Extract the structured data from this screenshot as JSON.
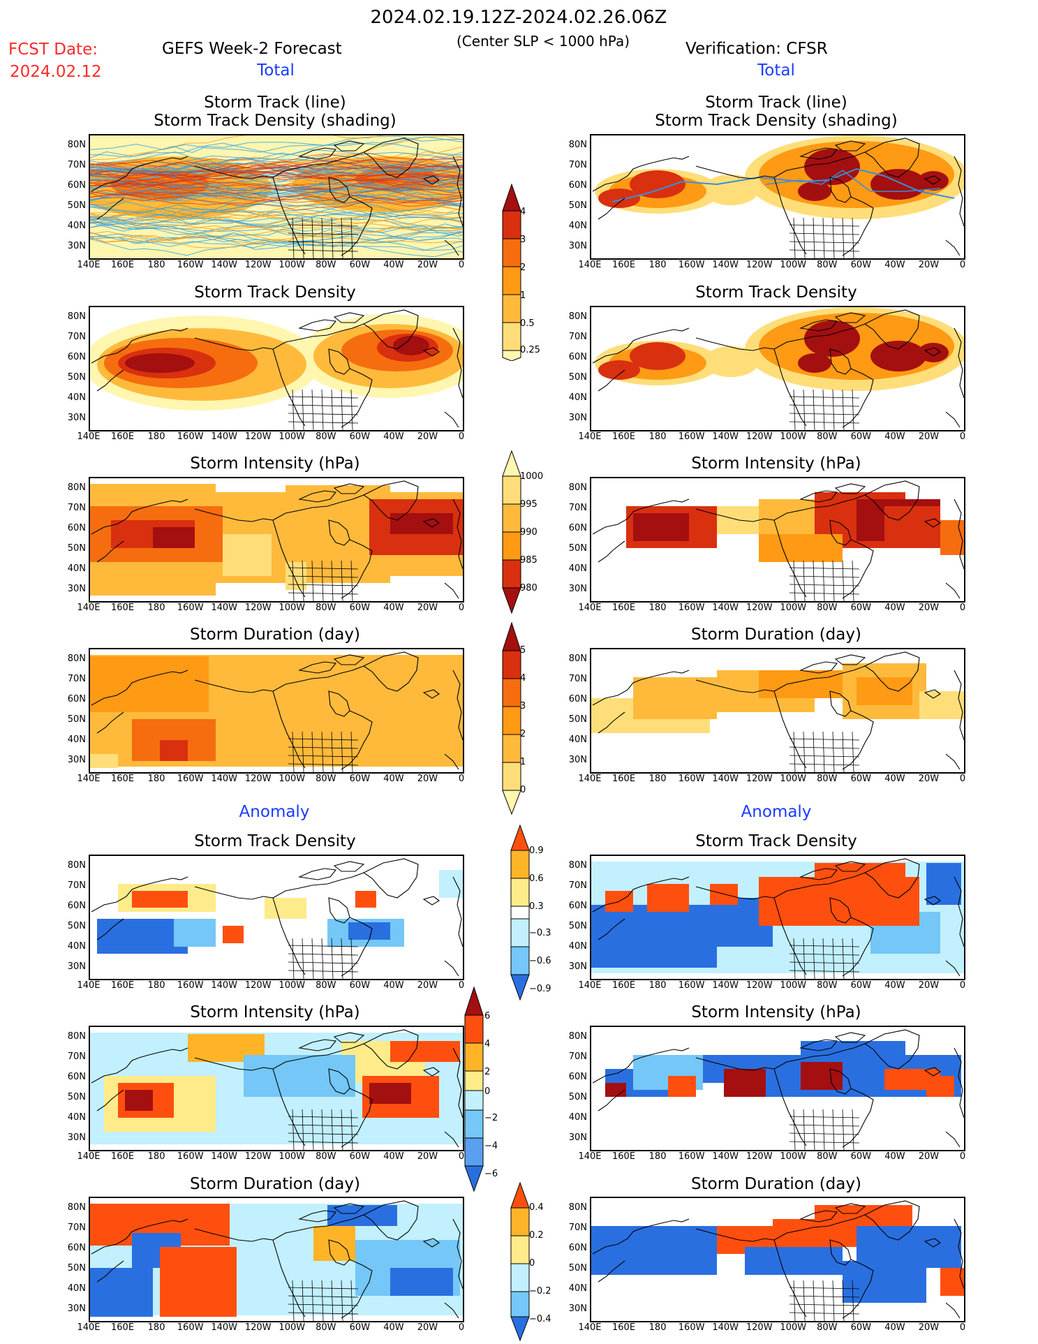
{
  "header": {
    "period": "2024.02.19.12Z-2024.02.26.06Z",
    "criterion": "(Center SLP < 1000 hPa)",
    "fcst_label": "FCST Date:",
    "fcst_date": "2024.02.12",
    "left_title": "GEFS Week-2 Forecast",
    "right_title": "Verification: CFSR",
    "total_label": "Total",
    "anomaly_label": "Anomaly"
  },
  "panel_titles": {
    "track": [
      "Storm Track (line)",
      "Storm Track Density (shading)"
    ],
    "density": "Storm Track Density",
    "intensity": "Storm Intensity (hPa)",
    "duration": "Storm Duration (day)"
  },
  "axes": {
    "lon_labels": [
      "140E",
      "160E",
      "180",
      "160W",
      "140W",
      "120W",
      "100W",
      "80W",
      "60W",
      "40W",
      "20W",
      "0"
    ],
    "lat_labels": [
      "80N",
      "70N",
      "60N",
      "50N",
      "40N",
      "30N"
    ]
  },
  "colorbars": {
    "density_total": [
      "4",
      "3",
      "2",
      "1",
      "0.5",
      "0.25"
    ],
    "intensity_total": [
      "1000",
      "995",
      "990",
      "985",
      "980"
    ],
    "duration_total": [
      "5",
      "4",
      "3",
      "2",
      "1",
      "0"
    ],
    "density_anom": [
      "0.9",
      "0.6",
      "0.3",
      "−0.3",
      "−0.6",
      "−0.9"
    ],
    "intensity_anom": [
      "6",
      "4",
      "2",
      "0",
      "−2",
      "−4",
      "−6"
    ],
    "duration_anom": [
      "0.4",
      "0.2",
      "0",
      "−0.2",
      "−0.4"
    ]
  },
  "colors": {
    "density_total": [
      "#fff6b0",
      "#ffde79",
      "#ffba3c",
      "#ff9a14",
      "#f66d0f",
      "#d9300f",
      "#a40f10"
    ],
    "anomaly_pos": [
      "#ffeb8a",
      "#ffb428",
      "#ff4f0f"
    ],
    "anomaly_neg": [
      "#c2f0ff",
      "#74c7f6",
      "#2a6fe0"
    ]
  }
}
